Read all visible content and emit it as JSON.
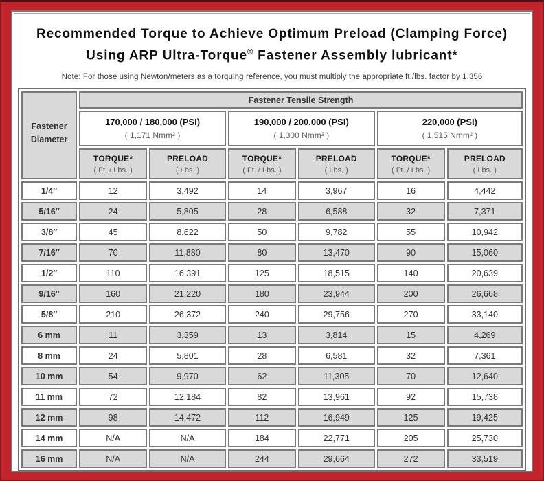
{
  "title": {
    "line1": "Recommended Torque to Achieve Optimum Preload (Clamping Force)",
    "line2_a": "Using ARP Ultra-Torque",
    "line2_sup": "®",
    "line2_b": " Fastener Assembly lubricant*"
  },
  "note": "Note: For those using Newton/meters as a torquing reference, you must multiply the appropriate ft./lbs. factor by 1.356",
  "colors": {
    "frame_red": "#c3232a",
    "frame_dark_edge": "#550b0e",
    "cell_gray": "#d9d9d9",
    "cell_border": "#7a7a7a"
  },
  "table": {
    "corner_line1": "Fastener",
    "corner_line2": "Diameter",
    "tensile_strength_label": "Fastener Tensile Strength",
    "groups": [
      {
        "psi_label": "170,000 / 180,000 (PSI)",
        "nmm_label": "( 1,171 Nmm² )"
      },
      {
        "psi_label": "190,000 / 200,000 (PSI)",
        "nmm_label": "( 1,300 Nmm² )"
      },
      {
        "psi_label": "220,000 (PSI)",
        "nmm_label": "( 1,515 Nmm² )"
      }
    ],
    "col_headers": {
      "torque_label": "TORQUE*",
      "torque_sub": "( Ft. / Lbs. )",
      "preload_label": "PRELOAD",
      "preload_sub": "( Lbs. )"
    },
    "rows": [
      {
        "dia": "1/4″",
        "vals": [
          "12",
          "3,492",
          "14",
          "3,967",
          "16",
          "4,442"
        ]
      },
      {
        "dia": "5/16″",
        "vals": [
          "24",
          "5,805",
          "28",
          "6,588",
          "32",
          "7,371"
        ]
      },
      {
        "dia": "3/8″",
        "vals": [
          "45",
          "8,622",
          "50",
          "9,782",
          "55",
          "10,942"
        ]
      },
      {
        "dia": "7/16″",
        "vals": [
          "70",
          "11,880",
          "80",
          "13,470",
          "90",
          "15,060"
        ]
      },
      {
        "dia": "1/2″",
        "vals": [
          "110",
          "16,391",
          "125",
          "18,515",
          "140",
          "20,639"
        ]
      },
      {
        "dia": "9/16″",
        "vals": [
          "160",
          "21,220",
          "180",
          "23,944",
          "200",
          "26,668"
        ]
      },
      {
        "dia": "5/8″",
        "vals": [
          "210",
          "26,372",
          "240",
          "29,756",
          "270",
          "33,140"
        ]
      },
      {
        "dia": "6 mm",
        "vals": [
          "11",
          "3,359",
          "13",
          "3,814",
          "15",
          "4,269"
        ]
      },
      {
        "dia": "8 mm",
        "vals": [
          "24",
          "5,801",
          "28",
          "6,581",
          "32",
          "7,361"
        ]
      },
      {
        "dia": "10 mm",
        "vals": [
          "54",
          "9,970",
          "62",
          "11,305",
          "70",
          "12,640"
        ]
      },
      {
        "dia": "11 mm",
        "vals": [
          "72",
          "12,184",
          "82",
          "13,961",
          "92",
          "15,738"
        ]
      },
      {
        "dia": "12 mm",
        "vals": [
          "98",
          "14,472",
          "112",
          "16,949",
          "125",
          "19,425"
        ]
      },
      {
        "dia": "14 mm",
        "vals": [
          "N/A",
          "N/A",
          "184",
          "22,771",
          "205",
          "25,730"
        ]
      },
      {
        "dia": "16 mm",
        "vals": [
          "N/A",
          "N/A",
          "244",
          "29,664",
          "272",
          "33,519"
        ]
      }
    ]
  }
}
